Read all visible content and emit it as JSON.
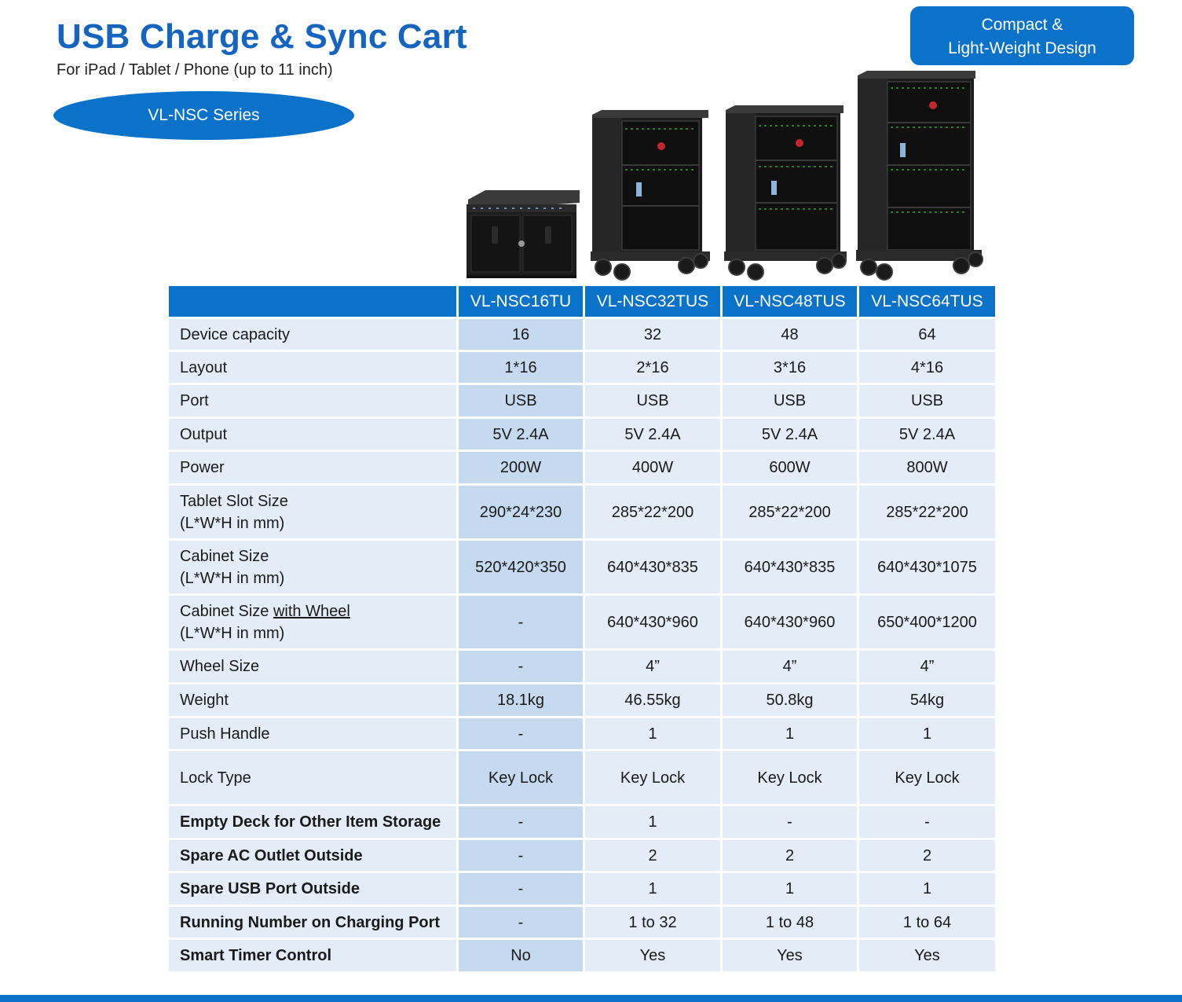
{
  "header": {
    "title": "USB Charge & Sync Cart",
    "subtitle": "For iPad / Tablet / Phone (up to 11 inch)",
    "series": "VL-NSC Series",
    "badge_line1": "Compact &",
    "badge_line2": "Light-Weight Design"
  },
  "table": {
    "models": [
      "VL-NSC16TU",
      "VL-NSC32TUS",
      "VL-NSC48TUS",
      "VL-NSC64TUS"
    ],
    "rows": [
      {
        "label": "Device capacity",
        "values": [
          "16",
          "32",
          "48",
          "64"
        ]
      },
      {
        "label": "Layout",
        "values": [
          "1*16",
          "2*16",
          "3*16",
          "4*16"
        ]
      },
      {
        "label": "Port",
        "values": [
          "USB",
          "USB",
          "USB",
          "USB"
        ]
      },
      {
        "label": "Output",
        "values": [
          "5V 2.4A",
          "5V 2.4A",
          "5V 2.4A",
          "5V 2.4A"
        ]
      },
      {
        "label": "Power",
        "values": [
          "200W",
          "400W",
          "600W",
          "800W"
        ]
      },
      {
        "label": "Tablet Slot Size",
        "label2": "(L*W*H in mm)",
        "values": [
          "290*24*230",
          "285*22*200",
          "285*22*200",
          "285*22*200"
        ]
      },
      {
        "label": "Cabinet Size",
        "label2": "(L*W*H in mm)",
        "values": [
          "520*420*350",
          "640*430*835",
          "640*430*835",
          "640*430*1075"
        ]
      },
      {
        "label": "Cabinet Size",
        "label_u": "with Wheel",
        "label2": "(L*W*H in mm)",
        "values": [
          "-",
          "640*430*960",
          "640*430*960",
          "650*400*1200"
        ]
      },
      {
        "label": "Wheel Size",
        "values": [
          "-",
          "4”",
          "4”",
          "4”"
        ]
      },
      {
        "label": "Weight",
        "values": [
          "18.1kg",
          "46.55kg",
          "50.8kg",
          "54kg"
        ]
      },
      {
        "label": "Push Handle",
        "values": [
          "-",
          "1",
          "1",
          "1"
        ]
      },
      {
        "label": "Lock Type",
        "values": [
          "Key Lock",
          "Key Lock",
          "Key Lock",
          "Key Lock"
        ]
      },
      {
        "label": "Empty Deck for Other Item Storage",
        "values": [
          "-",
          "1",
          "-",
          "-"
        ]
      },
      {
        "label": "Spare AC Outlet Outside",
        "values": [
          "-",
          "2",
          "2",
          "2"
        ]
      },
      {
        "label": "Spare USB Port Outside",
        "values": [
          "-",
          "1",
          "1",
          "1"
        ]
      },
      {
        "label": "Running Number on Charging Port",
        "values": [
          "-",
          "1 to 32",
          "1 to 48",
          "1 to 64"
        ]
      },
      {
        "label": "Smart Timer Control",
        "values": [
          "No",
          "Yes",
          "Yes",
          "Yes"
        ]
      }
    ]
  },
  "colors": {
    "brand_blue": "#0b72c9",
    "title_blue": "#1565c0",
    "cell_bg": "#e3ecf7",
    "highlight_cell_bg": "#c6daef"
  },
  "images": [
    "charging-box-image",
    "cart-32-image",
    "cart-48-image",
    "cart-64-image"
  ]
}
